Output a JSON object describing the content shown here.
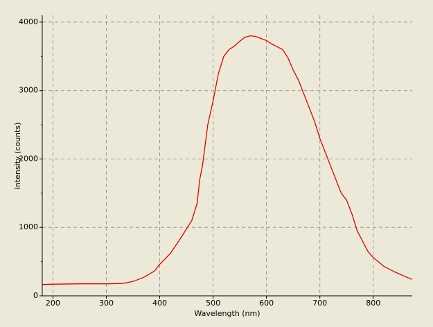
{
  "chart_data": {
    "type": "line",
    "x_label": "Wavelength (nm)",
    "y_label": "Intensity (counts)",
    "xlim": [
      180,
      873
    ],
    "ylim": [
      0,
      4100
    ],
    "xticks": [
      200,
      300,
      400,
      500,
      600,
      700,
      800
    ],
    "yticks": [
      0,
      1000,
      2000,
      3000,
      4000
    ],
    "yminorticks": [
      500,
      1500,
      2500,
      3500
    ],
    "grid": true,
    "series": [
      {
        "name": "Intensity",
        "color": "#E00000",
        "x": [
          180,
          200,
          250,
          300,
          330,
          350,
          370,
          390,
          400,
          420,
          440,
          460,
          470,
          475,
          480,
          490,
          500,
          510,
          520,
          530,
          540,
          550,
          560,
          570,
          580,
          590,
          600,
          610,
          620,
          630,
          640,
          650,
          660,
          670,
          680,
          690,
          700,
          710,
          720,
          730,
          740,
          750,
          760,
          770,
          780,
          790,
          800,
          820,
          840,
          860,
          873
        ],
        "values": [
          165,
          170,
          175,
          175,
          180,
          210,
          270,
          360,
          460,
          620,
          850,
          1100,
          1350,
          1700,
          1900,
          2500,
          2850,
          3250,
          3500,
          3600,
          3650,
          3720,
          3780,
          3800,
          3790,
          3760,
          3730,
          3680,
          3640,
          3600,
          3480,
          3300,
          3150,
          2950,
          2750,
          2550,
          2300,
          2100,
          1900,
          1700,
          1500,
          1400,
          1200,
          950,
          800,
          650,
          560,
          430,
          350,
          280,
          240
        ]
      }
    ]
  }
}
